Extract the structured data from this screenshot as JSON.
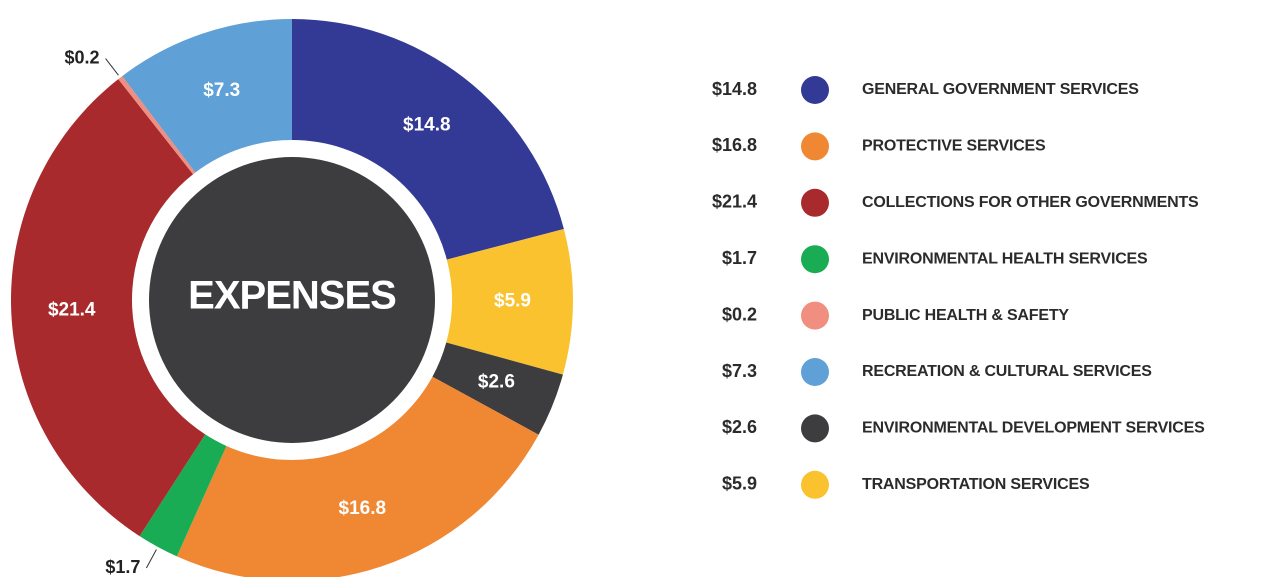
{
  "chart_data": {
    "type": "donut",
    "center_label": "EXPENSES",
    "categories": [
      "GENERAL GOVERNMENT SERVICES",
      "TRANSPORTATION SERVICES",
      "ENVIRONMENTAL DEVELOPMENT SERVICES",
      "PROTECTIVE SERVICES",
      "ENVIRONMENTAL HEALTH SERVICES",
      "COLLECTIONS FOR OTHER GOVERNMENTS",
      "PUBLIC HEALTH & SAFETY",
      "RECREATION & CULTURAL SERVICES"
    ],
    "values": [
      14.8,
      5.9,
      2.6,
      16.8,
      1.7,
      21.4,
      0.2,
      7.3
    ],
    "value_labels": [
      "$14.8",
      "$5.9",
      "$2.6",
      "$16.8",
      "$1.7",
      "$21.4",
      "$0.2",
      "$7.3"
    ],
    "colors": [
      "#323a96",
      "#f9c22e",
      "#3d3d3f",
      "#f08733",
      "#1aab55",
      "#a82a2d",
      "#f08e80",
      "#5fa0d6"
    ],
    "legend": "right"
  }
}
